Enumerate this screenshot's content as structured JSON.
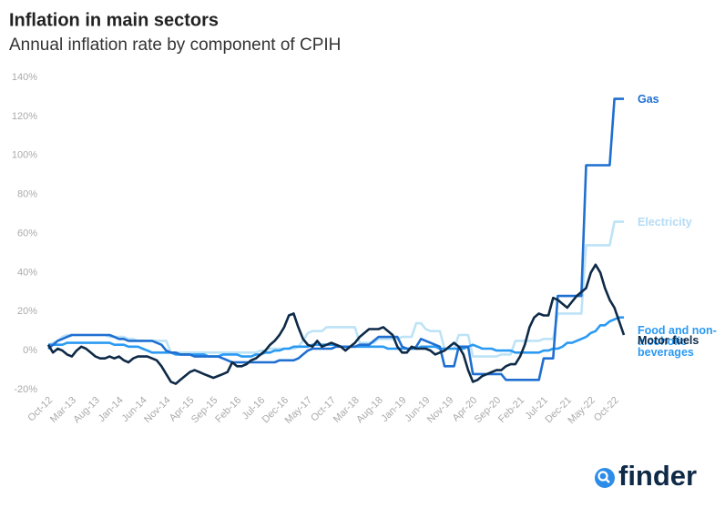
{
  "chart_data": {
    "type": "line",
    "title": "Inflation in main sectors",
    "subtitle": "Annual inflation rate by component of CPIH",
    "brand": "finder",
    "categories": [
      "Oct-12",
      null,
      null,
      null,
      null,
      "Mar-13",
      null,
      null,
      null,
      null,
      "Aug-13",
      null,
      null,
      null,
      null,
      "Jan-14",
      null,
      null,
      null,
      null,
      "Jun-14",
      null,
      null,
      null,
      null,
      "Nov-14",
      null,
      null,
      null,
      null,
      "Apr-15",
      null,
      null,
      null,
      null,
      "Sep-15",
      null,
      null,
      null,
      null,
      "Feb-16",
      null,
      null,
      null,
      null,
      "Jul-16",
      null,
      null,
      null,
      null,
      "Dec-16",
      null,
      null,
      null,
      null,
      "May-17",
      null,
      null,
      null,
      null,
      "Oct-17",
      null,
      null,
      null,
      null,
      "Mar-18",
      null,
      null,
      null,
      null,
      "Aug-18",
      null,
      null,
      null,
      null,
      "Jan-19",
      null,
      null,
      null,
      null,
      "Jun-19",
      null,
      null,
      null,
      null,
      "Nov-19",
      null,
      null,
      null,
      null,
      "Apr-20",
      null,
      null,
      null,
      null,
      "Sep-20",
      null,
      null,
      null,
      null,
      "Feb-21",
      null,
      null,
      null,
      null,
      "Jul-21",
      null,
      null,
      null,
      null,
      "Dec-21",
      null,
      null,
      null,
      null,
      "May-22",
      null,
      null,
      null,
      null,
      "Oct-22",
      null,
      null
    ],
    "series": [
      {
        "name": "Gas",
        "color": "#1f6fd1",
        "values": [
          1,
          3,
          5,
          6,
          7,
          8,
          8,
          8,
          8,
          8,
          8,
          8,
          8,
          8,
          7,
          6,
          6,
          5,
          5,
          5,
          5,
          5,
          5,
          4,
          3,
          0,
          -1,
          -1,
          -2,
          -2,
          -2,
          -3,
          -3,
          -3,
          -3,
          -3,
          -3,
          -4,
          -5,
          -6,
          -6,
          -6,
          -6,
          -6,
          -6,
          -6,
          -6,
          -6,
          -6,
          -5,
          -5,
          -5,
          -5,
          -4,
          -2,
          0,
          1,
          1,
          1,
          1,
          1,
          2,
          2,
          2,
          2,
          2,
          3,
          3,
          3,
          5,
          7,
          7,
          7,
          7,
          7,
          2,
          1,
          1,
          2,
          6,
          5,
          4,
          3,
          2,
          -8,
          -8,
          -8,
          2,
          2,
          2,
          -12,
          -12,
          -12,
          -12,
          -12,
          -12,
          -12,
          -15,
          -15,
          -15,
          -15,
          -15,
          -15,
          -15,
          -15,
          -4,
          -4,
          -4,
          28,
          28,
          28,
          28,
          28,
          28,
          95,
          95,
          95,
          95,
          95,
          95,
          129,
          129,
          129
        ]
      },
      {
        "name": "Electricity",
        "color": "#bde3f7",
        "values": [
          3,
          4,
          5,
          7,
          8,
          8,
          8,
          8,
          8,
          8,
          8,
          8,
          8,
          7,
          7,
          7,
          7,
          6,
          6,
          5,
          5,
          5,
          5,
          5,
          5,
          5,
          -1,
          -1,
          -1,
          -1,
          -1,
          -1,
          -1,
          -1,
          -1,
          -1,
          -1,
          -1,
          -1,
          -1,
          -1,
          -1,
          -1,
          -1,
          -1,
          0,
          0,
          1,
          1,
          1,
          1,
          1,
          1,
          2,
          5,
          9,
          10,
          10,
          10,
          12,
          12,
          12,
          12,
          12,
          12,
          12,
          4,
          4,
          4,
          4,
          6,
          6,
          6,
          6,
          6,
          7,
          7,
          7,
          14,
          14,
          11,
          10,
          10,
          10,
          1,
          1,
          1,
          8,
          8,
          8,
          -3,
          -3,
          -3,
          -3,
          -3,
          -3,
          -2,
          -2,
          -2,
          5,
          5,
          5,
          5,
          5,
          5,
          6,
          6,
          6,
          19,
          19,
          19,
          19,
          19,
          19,
          54,
          54,
          54,
          54,
          54,
          54,
          66,
          66,
          66
        ]
      },
      {
        "name": "Food and non-alcoholic beverages",
        "color": "#2b9af3",
        "values": [
          3,
          3,
          3,
          3,
          4,
          4,
          4,
          4,
          4,
          4,
          4,
          4,
          4,
          4,
          3,
          3,
          3,
          2,
          2,
          2,
          1,
          0,
          -1,
          -1,
          -1,
          -1,
          -1,
          -2,
          -2,
          -2,
          -2,
          -2,
          -2,
          -2,
          -3,
          -3,
          -3,
          -2,
          -2,
          -2,
          -2,
          -3,
          -3,
          -3,
          -2,
          -2,
          -1,
          -1,
          0,
          0,
          1,
          1,
          2,
          2,
          2,
          2,
          3,
          3,
          3,
          3,
          3,
          3,
          2,
          2,
          2,
          2,
          2,
          2,
          2,
          2,
          2,
          2,
          1,
          1,
          1,
          1,
          1,
          1,
          1,
          2,
          2,
          2,
          2,
          1,
          1,
          1,
          1,
          1,
          1,
          2,
          3,
          2,
          1,
          1,
          1,
          0,
          0,
          0,
          0,
          -1,
          -1,
          -1,
          -1,
          -1,
          -1,
          0,
          0,
          1,
          1,
          2,
          4,
          4,
          5,
          6,
          7,
          9,
          10,
          13,
          13,
          15,
          16,
          17,
          17
        ]
      },
      {
        "name": "Motor fuels",
        "color": "#0e2a47",
        "values": [
          3,
          -1,
          1,
          0,
          -2,
          -3,
          0,
          2,
          1,
          -1,
          -3,
          -4,
          -4,
          -3,
          -4,
          -3,
          -5,
          -6,
          -4,
          -3,
          -3,
          -3,
          -4,
          -5,
          -8,
          -12,
          -16,
          -17,
          -15,
          -13,
          -11,
          -10,
          -11,
          -12,
          -13,
          -14,
          -13,
          -12,
          -11,
          -6,
          -8,
          -8,
          -7,
          -5,
          -4,
          -2,
          0,
          3,
          5,
          8,
          12,
          18,
          19,
          12,
          6,
          3,
          2,
          5,
          2,
          3,
          4,
          3,
          2,
          0,
          2,
          4,
          7,
          9,
          11,
          11,
          11,
          12,
          10,
          8,
          2,
          -1,
          -1,
          2,
          1,
          1,
          1,
          0,
          -2,
          -1,
          0,
          2,
          4,
          2,
          -2,
          -10,
          -16,
          -15,
          -13,
          -12,
          -11,
          -10,
          -10,
          -8,
          -7,
          -7,
          -3,
          3,
          12,
          17,
          19,
          18,
          18,
          27,
          26,
          24,
          22,
          25,
          28,
          30,
          32,
          40,
          44,
          40,
          32,
          26,
          22,
          15,
          8
        ]
      }
    ],
    "ylim": [
      -20,
      140
    ],
    "yticks": [
      {
        "value": -20,
        "label": "-20%"
      },
      {
        "value": 0,
        "label": "0%"
      },
      {
        "value": 20,
        "label": "20%"
      },
      {
        "value": 40,
        "label": "40%"
      },
      {
        "value": 60,
        "label": "60%"
      },
      {
        "value": 80,
        "label": "80%"
      },
      {
        "value": 100,
        "label": "100%"
      },
      {
        "value": 120,
        "label": "120%"
      },
      {
        "value": 140,
        "label": "140%"
      }
    ],
    "grid": false
  }
}
